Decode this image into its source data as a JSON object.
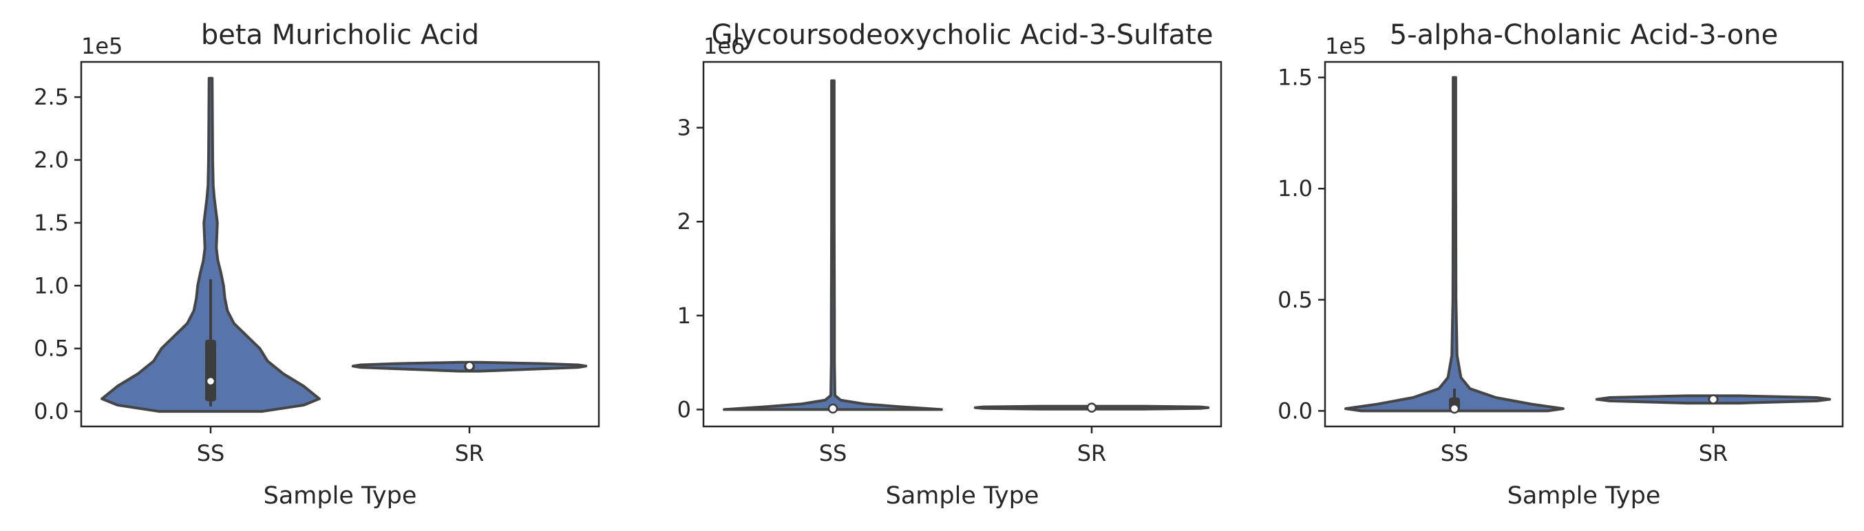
{
  "colors": {
    "violin_fill": "#5875ab",
    "violin_edge": "#454545",
    "box": "#3d3d3d",
    "median": "#ffffff",
    "axis": "#262626"
  },
  "chart_data": [
    {
      "type": "violin",
      "title": "beta Muricholic Acid",
      "xlabel": "Sample Type",
      "ylabel": "",
      "offset_text": "1e5",
      "categories": [
        "SS",
        "SR"
      ],
      "ylim": [
        -0.12,
        2.78
      ],
      "yticks": [
        0.0,
        0.5,
        1.0,
        1.5,
        2.0,
        2.5
      ],
      "ytick_labels": [
        "0.0",
        "0.5",
        "1.0",
        "1.5",
        "2.0",
        "2.5"
      ],
      "grid": false,
      "violins": [
        {
          "category": "SS",
          "profile": [
            [
              0.0,
              0.2
            ],
            [
              0.05,
              0.36
            ],
            [
              0.1,
              0.42
            ],
            [
              0.2,
              0.36
            ],
            [
              0.3,
              0.28
            ],
            [
              0.4,
              0.22
            ],
            [
              0.5,
              0.19
            ],
            [
              0.6,
              0.14
            ],
            [
              0.7,
              0.09
            ],
            [
              0.8,
              0.065
            ],
            [
              0.9,
              0.055
            ],
            [
              1.0,
              0.05
            ],
            [
              1.1,
              0.04
            ],
            [
              1.2,
              0.028
            ],
            [
              1.3,
              0.022
            ],
            [
              1.4,
              0.024
            ],
            [
              1.5,
              0.026
            ],
            [
              1.6,
              0.02
            ],
            [
              1.7,
              0.014
            ],
            [
              1.8,
              0.01
            ],
            [
              2.0,
              0.008
            ],
            [
              2.3,
              0.007
            ],
            [
              2.65,
              0.006
            ]
          ],
          "q1": 0.08,
          "median": 0.24,
          "q3": 0.57,
          "whisker_low": 0.04,
          "whisker_high": 1.05
        },
        {
          "category": "SR",
          "profile": [
            [
              0.32,
              0.04
            ],
            [
              0.34,
              0.3
            ],
            [
              0.35,
              0.42
            ],
            [
              0.36,
              0.45
            ],
            [
              0.37,
              0.42
            ],
            [
              0.38,
              0.28
            ],
            [
              0.39,
              0.04
            ]
          ],
          "q1": 0.33,
          "median": 0.36,
          "q3": 0.38,
          "whisker_low": 0.32,
          "whisker_high": 0.39
        }
      ]
    },
    {
      "type": "violin",
      "title": "Glycoursodeoxycholic Acid-3-Sulfate",
      "xlabel": "Sample Type",
      "ylabel": "",
      "offset_text": "1e6",
      "categories": [
        "SS",
        "SR"
      ],
      "ylim": [
        -0.18,
        3.7
      ],
      "yticks": [
        0,
        1,
        2,
        3
      ],
      "ytick_labels": [
        "0",
        "1",
        "2",
        "3"
      ],
      "grid": false,
      "violins": [
        {
          "category": "SS",
          "profile": [
            [
              0.0,
              0.42
            ],
            [
              0.03,
              0.26
            ],
            [
              0.06,
              0.12
            ],
            [
              0.1,
              0.03
            ],
            [
              0.15,
              0.008
            ],
            [
              0.5,
              0.006
            ],
            [
              1.0,
              0.006
            ],
            [
              2.0,
              0.005
            ],
            [
              3.5,
              0.005
            ]
          ],
          "q1": 0.0,
          "median": 0.01,
          "q3": 0.02,
          "whisker_low": 0.0,
          "whisker_high": 0.05
        },
        {
          "category": "SR",
          "profile": [
            [
              0.005,
              0.2
            ],
            [
              0.012,
              0.42
            ],
            [
              0.02,
              0.45
            ],
            [
              0.028,
              0.42
            ],
            [
              0.035,
              0.2
            ]
          ],
          "q1": 0.015,
          "median": 0.02,
          "q3": 0.025,
          "whisker_low": 0.01,
          "whisker_high": 0.03
        }
      ]
    },
    {
      "type": "violin",
      "title": "5-alpha-Cholanic Acid-3-one",
      "xlabel": "Sample Type",
      "ylabel": "",
      "offset_text": "1e5",
      "categories": [
        "SS",
        "SR"
      ],
      "ylim": [
        -0.07,
        1.57
      ],
      "yticks": [
        0.0,
        0.5,
        1.0,
        1.5
      ],
      "ytick_labels": [
        "0.0",
        "0.5",
        "1.0",
        "1.5"
      ],
      "grid": false,
      "violins": [
        {
          "category": "SS",
          "profile": [
            [
              0.0,
              0.36
            ],
            [
              0.01,
              0.42
            ],
            [
              0.03,
              0.3
            ],
            [
              0.06,
              0.16
            ],
            [
              0.1,
              0.06
            ],
            [
              0.15,
              0.025
            ],
            [
              0.25,
              0.01
            ],
            [
              0.5,
              0.006
            ],
            [
              1.0,
              0.005
            ],
            [
              1.5,
              0.005
            ]
          ],
          "q1": 0.0,
          "median": 0.01,
          "q3": 0.06,
          "whisker_low": 0.0,
          "whisker_high": 0.1
        },
        {
          "category": "SR",
          "profile": [
            [
              0.035,
              0.1
            ],
            [
              0.045,
              0.4
            ],
            [
              0.052,
              0.45
            ],
            [
              0.06,
              0.4
            ],
            [
              0.068,
              0.1
            ]
          ],
          "q1": 0.045,
          "median": 0.052,
          "q3": 0.06,
          "whisker_low": 0.038,
          "whisker_high": 0.066
        }
      ]
    }
  ]
}
